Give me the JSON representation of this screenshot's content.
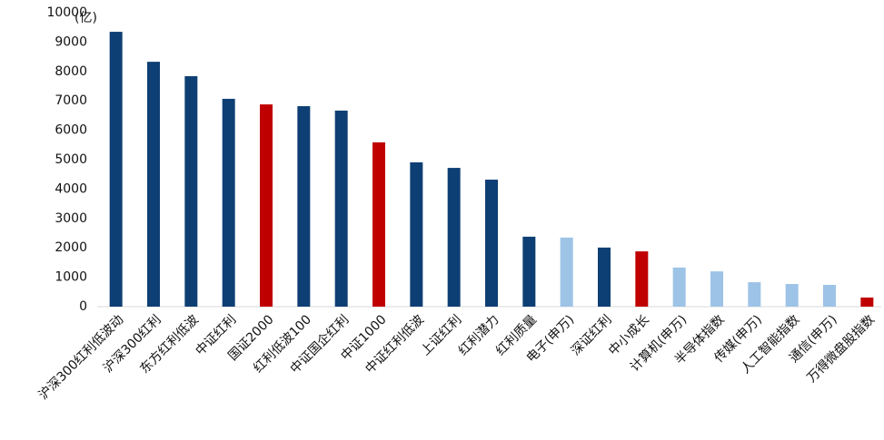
{
  "chart_data": {
    "type": "bar",
    "unit": "(亿)",
    "categories": [
      "沪深300红利低波动",
      "沪深300红利",
      "东方红利低波",
      "中证红利",
      "国证2000",
      "红利低波100",
      "中证国企红利",
      "中证1000",
      "中证红利低波",
      "上证红利",
      "红利潜力",
      "红利质量",
      "电子(申万)",
      "深证红利",
      "中小成长",
      "计算机(申万)",
      "半导体指数",
      "传媒(申万)",
      "人工智能指数",
      "通信(申万)",
      "万得微盘股指数"
    ],
    "values": [
      9350,
      8330,
      7840,
      7070,
      6880,
      6820,
      6670,
      5590,
      4910,
      4720,
      4320,
      2380,
      2350,
      2010,
      1880,
      1330,
      1200,
      830,
      770,
      740,
      310
    ],
    "colors": [
      "#0e3f74",
      "#0e3f74",
      "#0e3f74",
      "#0e3f74",
      "#c00000",
      "#0e3f74",
      "#0e3f74",
      "#c00000",
      "#0e3f74",
      "#0e3f74",
      "#0e3f74",
      "#0e3f74",
      "#9dc3e6",
      "#0e3f74",
      "#c00000",
      "#9dc3e6",
      "#9dc3e6",
      "#9dc3e6",
      "#9dc3e6",
      "#9dc3e6",
      "#c00000"
    ],
    "ylim": [
      0,
      10000
    ],
    "yticks": [
      0,
      1000,
      2000,
      3000,
      4000,
      5000,
      6000,
      7000,
      8000,
      9000,
      10000
    ],
    "grid": false
  }
}
